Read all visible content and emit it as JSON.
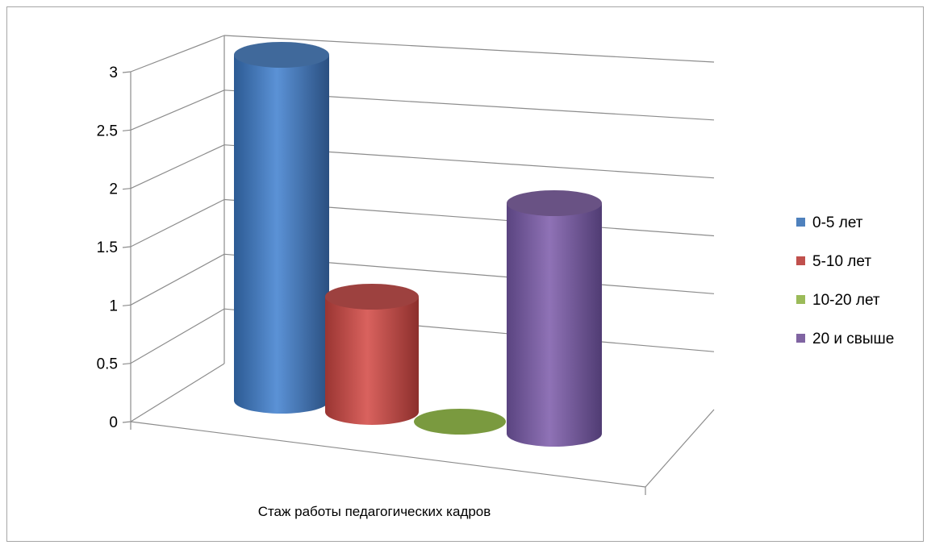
{
  "chart_data": {
    "type": "bar",
    "shape": "3d-cylinder",
    "categories": [
      "Стаж  работы  педагогических кадров"
    ],
    "series": [
      {
        "name": "0-5 лет",
        "values": [
          3
        ],
        "color": "#4f81bd"
      },
      {
        "name": "5-10 лет",
        "values": [
          1
        ],
        "color": "#c0504d"
      },
      {
        "name": "10-20 лет",
        "values": [
          0
        ],
        "color": "#9bbb59"
      },
      {
        "name": "20 и свыше",
        "values": [
          2
        ],
        "color": "#8064a2"
      }
    ],
    "yticks": [
      "0",
      "0.5",
      "1",
      "1.5",
      "2",
      "2.5",
      "3"
    ],
    "ylim": [
      0,
      3
    ],
    "grid": true,
    "legend": "right"
  }
}
